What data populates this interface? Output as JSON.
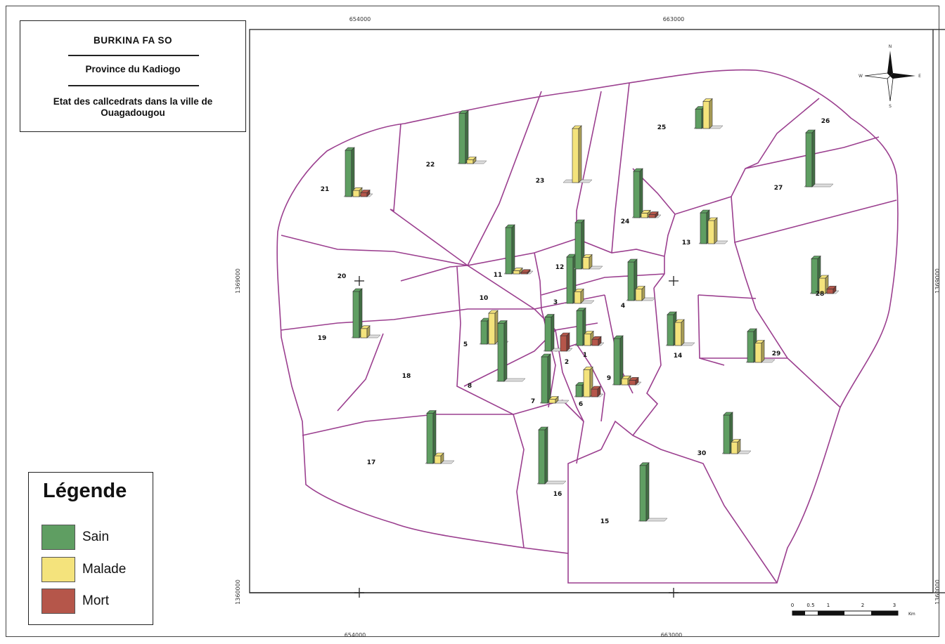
{
  "title_box": {
    "country": "BURKINA FA SO",
    "province": "Province du Kadiogo",
    "subject": "Etat des callcedrats dans la ville de Ouagadougou"
  },
  "legend": {
    "title": "Légende",
    "items": [
      {
        "label": "Sain",
        "color": "#5f9e62"
      },
      {
        "label": "Malade",
        "color": "#f4e37c"
      },
      {
        "label": "Mort",
        "color": "#b5564a"
      }
    ]
  },
  "grid_labels": {
    "top": [
      "654000",
      "663000"
    ],
    "bottom": [
      "654000",
      "663000"
    ],
    "left": [
      "1369000",
      "1360000"
    ],
    "right": [
      "1369000",
      "1360000"
    ]
  },
  "scale_bar": {
    "ticks": [
      "0",
      "0.5",
      "1",
      "2",
      "3"
    ],
    "unit": "Km"
  },
  "north_arrow": {
    "n": "N",
    "s": "S",
    "e": "E",
    "w": "W"
  },
  "colors": {
    "boundary": "#9b3f8f",
    "sain": "#5f9e62",
    "malade": "#f4e37c",
    "mort": "#b5564a"
  },
  "sectors": [
    {
      "id": "1",
      "sain": 45,
      "malade": 15,
      "mort": 8
    },
    {
      "id": "2",
      "sain": 44,
      "malade": 0,
      "mort": 20
    },
    {
      "id": "3",
      "sain": 60,
      "malade": 15,
      "mort": 0
    },
    {
      "id": "4",
      "sain": 50,
      "malade": 15,
      "mort": 0
    },
    {
      "id": "5",
      "sain": 30,
      "malade": 40,
      "mort": 0
    },
    {
      "id": "6",
      "sain": 15,
      "malade": 35,
      "mort": 10
    },
    {
      "id": "7",
      "sain": 60,
      "malade": 5,
      "mort": 0
    },
    {
      "id": "8",
      "sain": 75,
      "malade": 0,
      "mort": 0
    },
    {
      "id": "9",
      "sain": 60,
      "malade": 8,
      "mort": 6
    },
    {
      "id": "10",
      "sain": 0,
      "malade": 0,
      "mort": 0
    },
    {
      "id": "11",
      "sain": 60,
      "malade": 4,
      "mort": 2
    },
    {
      "id": "12",
      "sain": 60,
      "malade": 15,
      "mort": 0
    },
    {
      "id": "13",
      "sain": 40,
      "malade": 30,
      "mort": 0
    },
    {
      "id": "14",
      "sain": 40,
      "malade": 30,
      "mort": 0
    },
    {
      "id": "15",
      "sain": 72,
      "malade": 0,
      "mort": 0
    },
    {
      "id": "16",
      "sain": 70,
      "malade": 0,
      "mort": 0
    },
    {
      "id": "17",
      "sain": 65,
      "malade": 10,
      "mort": 0
    },
    {
      "id": "18",
      "sain": 0,
      "malade": 0,
      "mort": 0
    },
    {
      "id": "19",
      "sain": 60,
      "malade": 12,
      "mort": 0
    },
    {
      "id": "20",
      "sain": 0,
      "malade": 0,
      "mort": 0
    },
    {
      "id": "21",
      "sain": 60,
      "malade": 8,
      "mort": 5
    },
    {
      "id": "22",
      "sain": 65,
      "malade": 5,
      "mort": 0
    },
    {
      "id": "23",
      "sain": 0,
      "malade": 70,
      "mort": 0
    },
    {
      "id": "24",
      "sain": 60,
      "malade": 6,
      "mort": 4
    },
    {
      "id": "25",
      "sain": 25,
      "malade": 35,
      "mort": 0
    },
    {
      "id": "26",
      "sain": 0,
      "malade": 0,
      "mort": 0
    },
    {
      "id": "27",
      "sain": 70,
      "malade": 0,
      "mort": 0
    },
    {
      "id": "28",
      "sain": 45,
      "malade": 20,
      "mort": 6
    },
    {
      "id": "29",
      "sain": 40,
      "malade": 25,
      "mort": 0
    },
    {
      "id": "30",
      "sain": 50,
      "malade": 15,
      "mort": 0
    }
  ]
}
